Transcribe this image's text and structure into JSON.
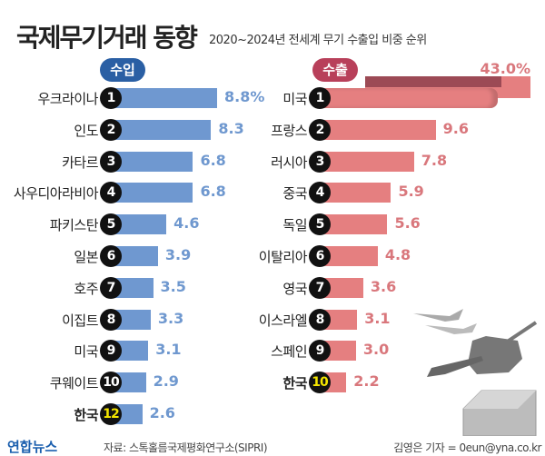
{
  "header": {
    "title": "국제무기거래 동향",
    "subtitle": "2020~2024년 전세계 무기 수출입 비중 순위"
  },
  "colors": {
    "import_bar": "#6f98d0",
    "import_value": "#6f98cf",
    "export_bar": "#e57f80",
    "export_value": "#d9777c",
    "korea_rank": "#f5e600"
  },
  "chart_data": [
    {
      "type": "bar",
      "title": "수입",
      "unit": "%",
      "categories": [
        "우크라이나",
        "인도",
        "카타르",
        "사우디아라비아",
        "파키스탄",
        "일본",
        "호주",
        "이집트",
        "미국",
        "쿠웨이트",
        "한국"
      ],
      "ranks": [
        "1",
        "2",
        "3",
        "4",
        "5",
        "6",
        "7",
        "8",
        "9",
        "10",
        "12"
      ],
      "labels": [
        "8.8%",
        "8.3",
        "6.8",
        "6.8",
        "4.6",
        "3.9",
        "3.5",
        "3.3",
        "3.1",
        "2.9",
        "2.6"
      ],
      "values": [
        8.8,
        8.3,
        6.8,
        6.8,
        4.6,
        3.9,
        3.5,
        3.3,
        3.1,
        2.9,
        2.6
      ]
    },
    {
      "type": "bar",
      "title": "수출",
      "unit": "%",
      "categories": [
        "미국",
        "프랑스",
        "러시아",
        "중국",
        "독일",
        "이탈리아",
        "영국",
        "이스라엘",
        "스페인",
        "한국"
      ],
      "ranks": [
        "1",
        "2",
        "3",
        "4",
        "5",
        "6",
        "7",
        "8",
        "9",
        "10"
      ],
      "labels": [
        "43.0%",
        "9.6",
        "7.8",
        "5.9",
        "5.6",
        "4.8",
        "3.6",
        "3.1",
        "3.0",
        "2.2"
      ],
      "values": [
        43.0,
        9.6,
        7.8,
        5.9,
        5.6,
        4.8,
        3.6,
        3.1,
        3.0,
        2.2
      ]
    }
  ],
  "footer": {
    "logo": "연합뉴스",
    "source": "자료: 스톡홀름국제평화연구소(SIPRI)",
    "reporter": "김영은 기자 = 0eun@yna.co.kr"
  }
}
